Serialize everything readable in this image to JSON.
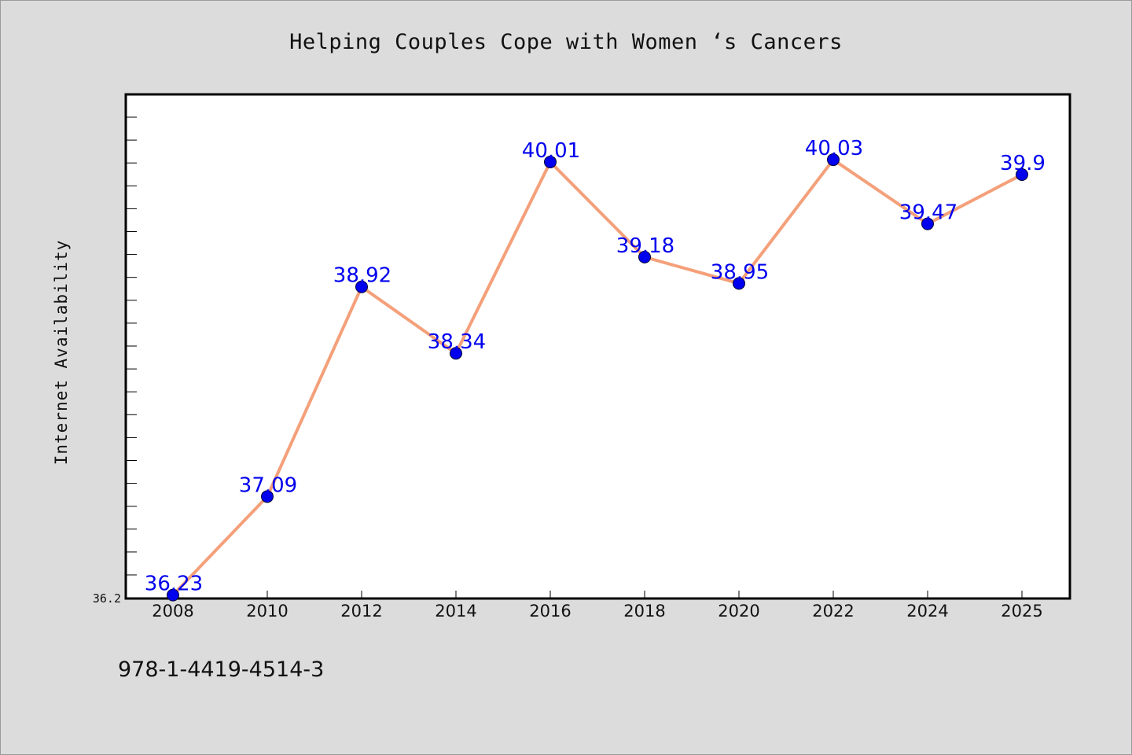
{
  "chart_data": {
    "type": "line",
    "title": "Helping Couples Cope with Women ‘s Cancers",
    "xlabel": "",
    "ylabel": "Internet Availability",
    "categories": [
      "2008",
      "2010",
      "2012",
      "2014",
      "2016",
      "2018",
      "2020",
      "2022",
      "2024",
      "2025"
    ],
    "series": [
      {
        "values": [
          36.23,
          37.09,
          38.92,
          38.34,
          40.01,
          39.18,
          38.95,
          40.03,
          39.47,
          39.9
        ],
        "labels": [
          "36.23",
          "37.09",
          "38.92",
          "38.34",
          "40.01",
          "39.18",
          "38.95",
          "40.03",
          "39.47",
          "39.9"
        ]
      }
    ],
    "ylim": [
      36.2,
      40.6
    ],
    "y_tick_label": "36.2",
    "grid": false,
    "line_color": "#f4a07a",
    "marker_color": "#0000ee",
    "label_color": "#0000ee"
  },
  "footer": {
    "isbn": "978-1-4419-4514-3"
  }
}
